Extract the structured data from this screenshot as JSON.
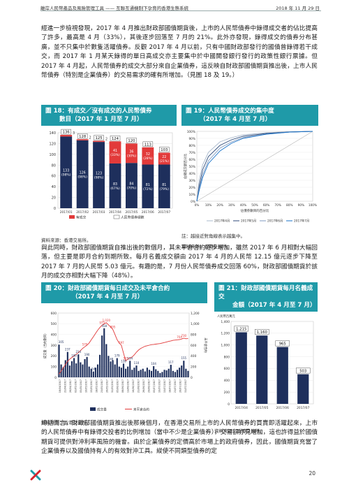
{
  "header": {
    "left": "離岸人民幣產品及風險管理工具 —— 互聯互通機制下孕育的香港生態系統",
    "right": "2018 年 11 月 29 日"
  },
  "paragraphs": {
    "p1": "經進一步檢視發現，2017 年 4 月推出財政部國債期貨後，上市的人民幣債券中錄得成交者的佔比提高了許多，最高是 4 月（33%），其後逐步回落至 7 月的 21%。此外亦發現，錄得成交的債券分布甚廣，並不只集中於數隻活躍債券。反觀 2017 年 4 月以前，只有中國財政部發行的國債曾錄得若干成交，而 2017 年 1 月某天錄得的單日高成交亦主要集中於中國開發銀行發行的政策性銀行票據。但 2017 年 4 月起，人民幣債券的成交大部分來自企業債券，這反映自財政部國債期貨推出後，上市人民幣債券（特別是企業債券）的交易需求的確有所增加。（見圖 18 及 19。）",
    "p2": "與此同時，財政部國債期貨自推出後的數個月，其未平倉合約逐步增加，雖然 2017 年 6 月相對大幅回落，但主要是即月合約到期所致。每月名義成交額由 2017 年 4 月的人民幣 12.15 億元逐步下降至 2017 年 7 月的人民幣 5.03 億元。有趣的是，7 月份人民幣債券成交回落 60%，財政部國債期貨於該月的成交亦相對大幅下降（48%）。",
    "p3": "總括而言，財政部國債期貨推出後那幾個月，在香港交易所上市的人民幣債券的買賣即活躍起來，上市的人民幣債券中有錄得交投者的比例增加（當中不少是企業債券），交易額亦見增加，這也許得益於國債期貨可提供對沖利率風險的機會。由於企業債券的定價高於市場上的政府債券，因此，國債期貨充當了企業債券以及國債持有人的有效對沖工具。縱使不同類型債券的定"
  },
  "fig18": {
    "title_line1": "圖 18：有成交／沒有成交的人民幣債券",
    "title_line2": "數目（2017 年 1 月至 7 月）",
    "legend_traded": "有成交",
    "legend_not_traded": "人民幣債券總數",
    "source": "資料來源：香港交易所。"
  },
  "fig19": {
    "title_line1": "圖 19：人民幣債券成交的集中度",
    "title_line2": "（2017 年 4 月至 7 月）",
    "note": "註：越接近對角線表示越集中。",
    "source": "資料來源：香港交易所。",
    "ylabel": "佔總成交額百分比",
    "xlabel": "佔債券數目的百分比"
  },
  "fig20": {
    "title_line1": "圖 20：財政部國債期貨每日成交及未平倉合約",
    "title_line2": "（2017 年 4 月至 7 月）",
    "legend_volume": "成交量",
    "legend_oi": "未平倉合約",
    "ylabel_left": "成交量（合約數目）",
    "ylabel_right": "未平倉合約",
    "source": "資料來源：香港交易所。"
  },
  "fig21": {
    "title_line1": "圖 21：財政部國債期貨每月名義成交",
    "title_line2": "金額（2017 年 4 月至 7 月）",
    "ylabel": "人民幣百萬元",
    "source": "資料來源：香港交易所。"
  },
  "page_number": "20",
  "chart_data": [
    {
      "type": "bar",
      "title": "有成交／沒有成交的人民幣債券數目（2017 年 1 月至 7 月）",
      "categories": [
        "2017/01",
        "2017/02",
        "2017/03",
        "2017/04",
        "2017/05",
        "2017/06",
        "2017/07"
      ],
      "totals": [
        136,
        128,
        125,
        124,
        120,
        113,
        103
      ],
      "series": [
        {
          "name": "有成交",
          "values": [
            3,
            2,
            2,
            41,
            36,
            32,
            22
          ],
          "labels": [
            "3",
            "2",
            "2",
            "41 (33%)",
            "36 (30%)",
            "32 (28%)",
            "22 (21%)"
          ]
        },
        {
          "name": "沒有成交",
          "values": [
            133,
            126,
            123,
            83,
            84,
            81,
            81
          ],
          "labels": [
            "133 (98%)",
            "126 (98%)",
            "123 (98%)",
            "83 (67%)",
            "84 (70%)",
            "81 (72%)",
            "81 (79%)"
          ]
        }
      ],
      "ylim": [
        0,
        140
      ],
      "yticks": [
        0,
        20,
        40,
        60,
        80,
        100,
        120,
        140
      ],
      "colors": {
        "traded": "#e23a3a",
        "not_traded": "#1e2f5c"
      }
    },
    {
      "type": "line",
      "title": "人民幣債券成交的集中度（2017 年 4 月至 7 月）",
      "xlabel": "佔債券數目的百分比",
      "ylabel": "佔總成交額百分比",
      "xticks": [
        "0%",
        "10%",
        "20%",
        "30%",
        "40%",
        "50%",
        "60%",
        "70%",
        "80%",
        "90%",
        "100%"
      ],
      "yticks": [
        "0%",
        "10%",
        "20%",
        "30%",
        "40%",
        "50%",
        "60%",
        "70%",
        "80%",
        "90%",
        "100%"
      ],
      "series": [
        {
          "name": "2017年4月",
          "color": "#a9b8cc",
          "x": [
            0,
            2,
            5,
            10,
            20,
            30,
            40,
            60,
            80,
            100
          ],
          "y": [
            0,
            30,
            52,
            70,
            85,
            91,
            95,
            98,
            99.5,
            100
          ]
        },
        {
          "name": "2017年5月",
          "color": "#2c4a7a",
          "x": [
            0,
            2,
            5,
            10,
            20,
            30,
            40,
            60,
            80,
            100
          ],
          "y": [
            0,
            22,
            45,
            64,
            80,
            88,
            93,
            97,
            99,
            100
          ]
        },
        {
          "name": "2017年6月",
          "color": "#7f9ac0",
          "x": [
            0,
            2,
            5,
            10,
            20,
            30,
            40,
            60,
            80,
            100
          ],
          "y": [
            0,
            18,
            38,
            58,
            76,
            85,
            91,
            96,
            99,
            100
          ]
        },
        {
          "name": "2017年7月",
          "color": "#1a73c9",
          "x": [
            0,
            2,
            5,
            10,
            20,
            30,
            40,
            60,
            80,
            100
          ],
          "y": [
            0,
            15,
            34,
            54,
            72,
            83,
            90,
            96,
            99,
            100
          ]
        }
      ],
      "ylim": [
        0,
        100
      ],
      "xlim": [
        0,
        100
      ]
    },
    {
      "type": "bar",
      "title": "財政部國債期貨每日成交及未平倉合約（2017 年 4 月至 7 月）",
      "ylim_left": [
        0,
        600
      ],
      "ylim_right": [
        0,
        1200
      ],
      "yticks_left": [
        0,
        100,
        200,
        300,
        400,
        500,
        600
      ],
      "yticks_right": [
        0,
        200,
        400,
        600,
        800,
        1000,
        1200
      ],
      "volume_labels": [
        {
          "i": 1,
          "v": 305
        },
        {
          "i": 4,
          "v": 237
        },
        {
          "i": 7,
          "v": 180
        },
        {
          "i": 9,
          "v": 214
        },
        {
          "i": 13,
          "v": 190
        },
        {
          "i": 16,
          "v": 54
        },
        {
          "i": 21,
          "v": 458
        },
        {
          "i": 24,
          "v": 148
        },
        {
          "i": 27,
          "v": 179
        },
        {
          "i": 30,
          "v": 128
        },
        {
          "i": 33,
          "v": 154
        },
        {
          "i": 36,
          "v": 110
        },
        {
          "i": 44,
          "v": 104
        },
        {
          "i": 52,
          "v": 117
        },
        {
          "i": 58,
          "v": 155
        }
      ],
      "oi_labels": [
        {
          "i": 12,
          "v": 570
        },
        {
          "i": 20,
          "v": 975
        },
        {
          "i": 22,
          "v": 1020
        },
        {
          "i": 25,
          "v": 895
        },
        {
          "i": 29,
          "v": 597
        },
        {
          "i": 31,
          "v": 305
        },
        {
          "i": 56,
          "v": 704
        },
        {
          "i": 58,
          "v": 730
        }
      ],
      "volume": [
        305,
        120,
        95,
        160,
        237,
        110,
        150,
        180,
        130,
        214,
        140,
        120,
        170,
        190,
        100,
        80,
        54,
        90,
        120,
        210,
        390,
        458,
        310,
        200,
        148,
        160,
        120,
        179,
        100,
        90,
        128,
        80,
        100,
        154,
        70,
        90,
        110,
        60,
        70,
        80,
        55,
        90,
        70,
        60,
        104,
        75,
        60,
        40,
        50,
        70,
        65,
        80,
        117,
        60,
        50,
        70,
        90,
        110,
        155,
        80,
        60
      ],
      "open_interest": [
        60,
        120,
        180,
        240,
        300,
        340,
        370,
        400,
        430,
        460,
        500,
        540,
        570,
        600,
        640,
        700,
        760,
        820,
        880,
        930,
        975,
        1000,
        1020,
        980,
        940,
        895,
        800,
        700,
        640,
        597,
        450,
        305,
        340,
        360,
        380,
        420,
        470,
        510,
        540,
        560,
        580,
        590,
        600,
        610,
        615,
        620,
        625,
        630,
        640,
        650,
        660,
        670,
        680,
        690,
        695,
        700,
        704,
        715,
        730,
        720,
        725
      ],
      "x_ticks": [
        "18/04/2017",
        "21/04/2017",
        "26/04/2017",
        "02/05/2017",
        "05/05/2017",
        "10/05/2017",
        "15/05/2017",
        "18/05/2017",
        "23/05/2017",
        "26/05/2017",
        "31/05/2017",
        "05/06/2017",
        "08/06/2017",
        "13/06/2017",
        "16/06/2017",
        "21/06/2017",
        "26/06/2017",
        "29/06/2017",
        "05/07/2017",
        "10/07/2017",
        "13/07/2017",
        "18/07/2017",
        "21/07/2017",
        "26/07/2017",
        "31/07/2017"
      ],
      "colors": {
        "volume": "#1e2f5c",
        "oi": "#e23a3a"
      }
    },
    {
      "type": "bar",
      "title": "財政部國債期貨每月名義成交金額（2017 年 4 月至 7 月）",
      "ylabel": "人民幣百萬元",
      "categories": [
        "2017/04",
        "2017/05",
        "2017/06",
        "2017/07"
      ],
      "values": [
        1215,
        1160,
        965,
        503
      ],
      "ylim": [
        0,
        1400
      ],
      "yticks": [
        0,
        200,
        400,
        600,
        800,
        1000,
        1200,
        1400
      ],
      "color": "#1e2f5c"
    }
  ]
}
